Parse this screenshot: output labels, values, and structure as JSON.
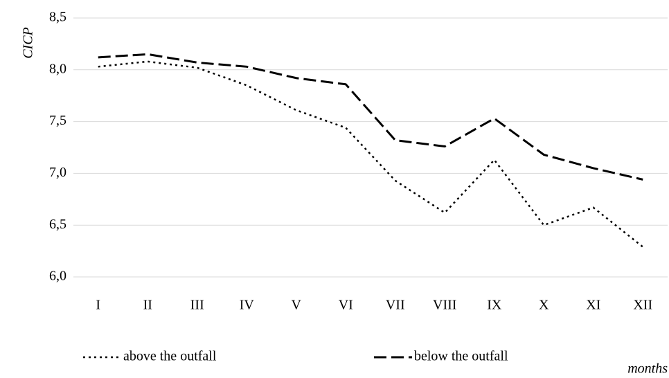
{
  "chart_data": {
    "type": "line",
    "y_label": "CICP",
    "x_label": "months",
    "categories": [
      "I",
      "II",
      "III",
      "IV",
      "V",
      "VI",
      "VII",
      "VIII",
      "IX",
      "X",
      "XI",
      "XII"
    ],
    "series": [
      {
        "name": "above the outfall",
        "color": "#000000",
        "dash": "dotted",
        "values": [
          8.03,
          8.08,
          8.02,
          7.85,
          7.61,
          7.44,
          6.93,
          6.62,
          7.13,
          6.5,
          6.67,
          6.29
        ]
      },
      {
        "name": "below the outfall",
        "color": "#000000",
        "dash": "dashed",
        "values": [
          8.12,
          8.15,
          8.07,
          8.03,
          7.92,
          7.86,
          7.32,
          7.26,
          7.53,
          7.18,
          7.05,
          6.94
        ]
      }
    ],
    "ylim": [
      6,
      8.5
    ],
    "yticks": [
      {
        "value": 6,
        "label": "6,0"
      },
      {
        "value": 6.5,
        "label": "6,5"
      },
      {
        "value": 7,
        "label": "7,0"
      },
      {
        "value": 7.5,
        "label": "7,5"
      },
      {
        "value": 8,
        "label": "8,0"
      },
      {
        "value": 8.5,
        "label": "8,5"
      }
    ],
    "grid": true
  }
}
